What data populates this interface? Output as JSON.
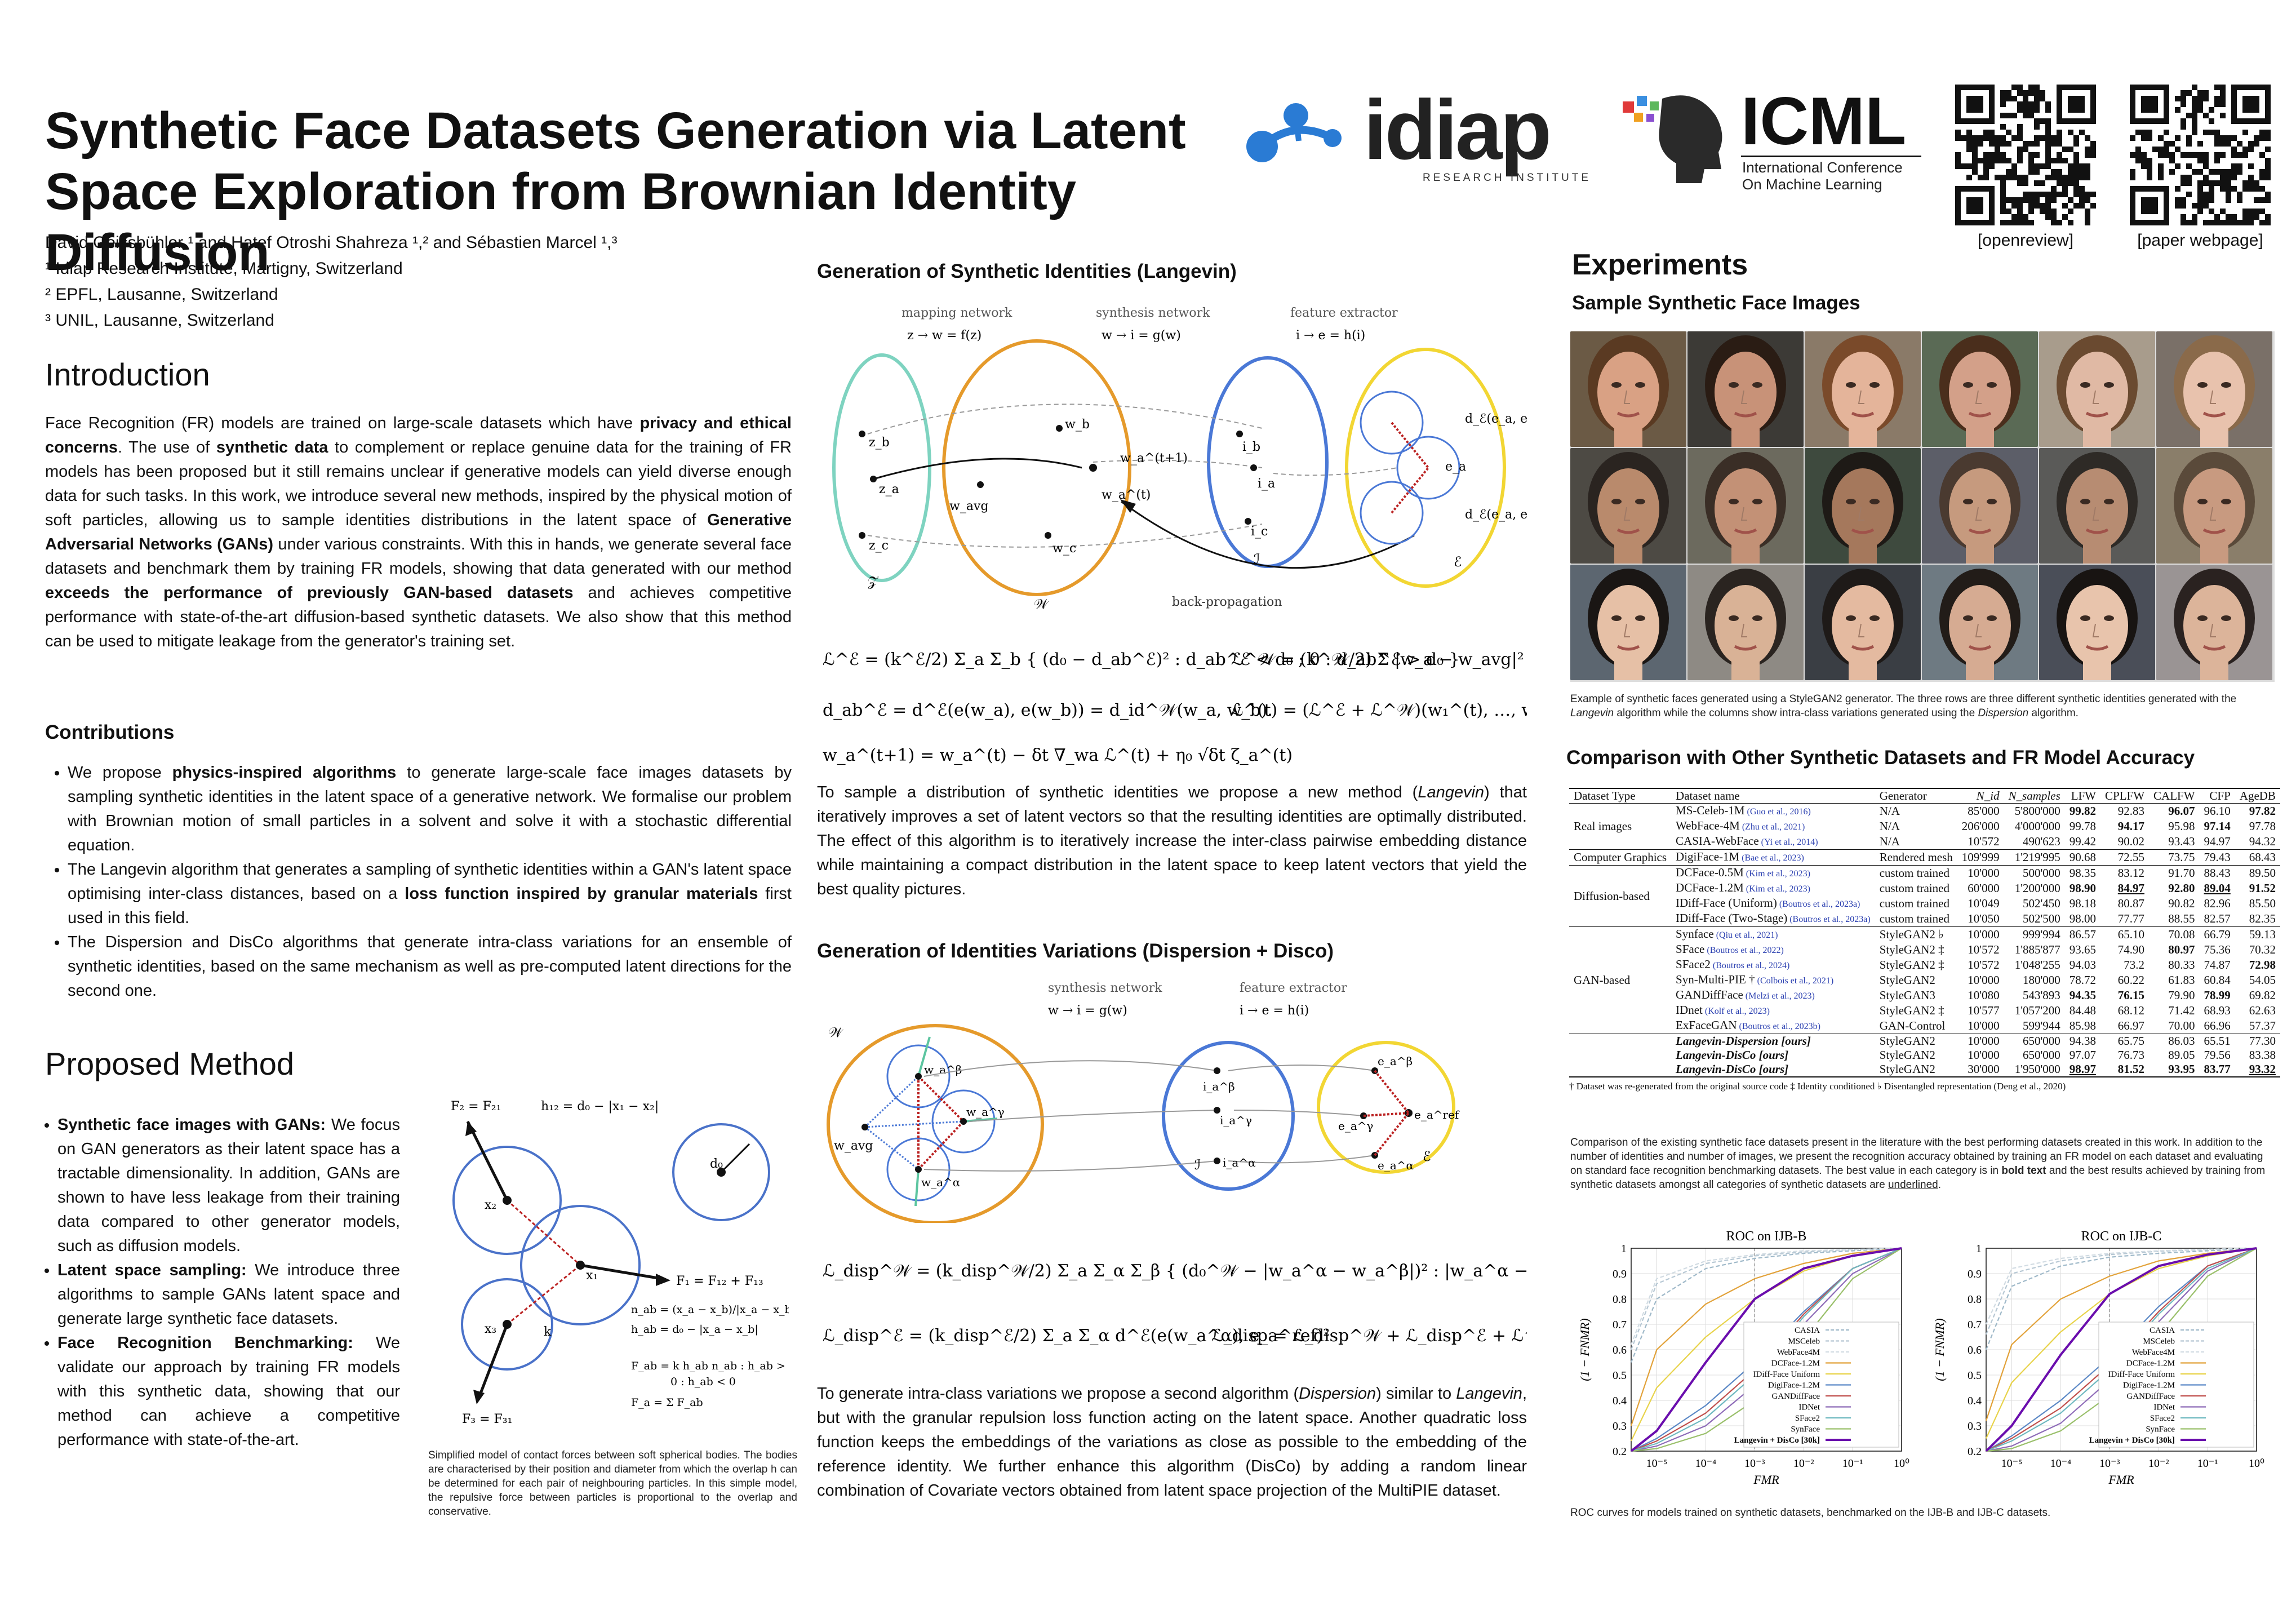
{
  "title_line1": "Synthetic Face Datasets Generation via Latent",
  "title_line2": "Space Exploration from Brownian Identity Diffusion",
  "authors": "David Geissbühler ¹ and Hatef Otroshi Shahreza ¹,² and Sébastien Marcel ¹,³",
  "affiliations": [
    "¹ Idiap Research Institute, Martigny, Switzerland",
    "² EPFL, Lausanne, Switzerland",
    "³ UNIL, Lausanne, Switzerland"
  ],
  "logos": {
    "idiap_text": "idiap",
    "idiap_sub": "RESEARCH INSTITUTE",
    "icml_text": "ICML",
    "icml_sub1": "International Conference",
    "icml_sub2": "On Machine Learning",
    "qr1_label": "[openreview]",
    "qr2_label": "[paper webpage]"
  },
  "intro": {
    "heading": "Introduction",
    "text_html": "Face Recognition (FR) models are trained on large-scale datasets which have <b>privacy and ethical concerns</b>. The use of <b>synthetic data</b> to complement or replace genuine data for the training of FR models has been proposed but it still remains unclear if generative models can yield diverse enough data for such tasks. In this work, we introduce several new methods, inspired by the physical motion of soft particles, allowing us to sample identities distributions in the latent space of <b>Generative Adversarial Networks (GANs)</b> under various constraints. With this in hands, we generate several face datasets and benchmark them by training FR models, showing that data generated with our method <b>exceeds the performance of previously GAN-based datasets</b> and achieves competitive performance with state-of-the-art diffusion-based synthetic datasets. We also show that this method can be used to mitigate leakage from the generator's training set."
  },
  "contributions": {
    "heading": "Contributions",
    "items_html": [
      "We propose <b>physics-inspired algorithms</b> to generate large-scale face images datasets by sampling synthetic identities in the latent space of a generative network. We formalise our problem with Brownian motion of small particles in a solvent and solve it with a stochastic differential equation.",
      "The Langevin algorithm that generates a sampling of synthetic identities within a GAN's latent space optimising inter-class distances, based on a <b>loss function inspired by granular materials</b> first used in this field.",
      "The Dispersion and DisCo algorithms that generate intra-class variations for an ensemble of synthetic identities, based on the same mechanism as well as pre-computed latent directions for the second one."
    ]
  },
  "method": {
    "heading": "Proposed Method",
    "items_html": [
      "<b>Synthetic face images with GANs:</b> We focus on GAN generators as their latent space has a tractable dimensionality. In addition, GANs are shown to have less leakage from their training data compared to other generator models, such as diffusion models.",
      "<b>Latent space sampling:</b> We introduce three algorithms to sample GANs latent space and generate large synthetic face datasets.",
      "<b>Face Recognition Benchmarking:</b> We validate our approach by training FR models with this synthetic data, showing that our method can achieve a competitive performance with state-of-the-art."
    ],
    "figure_caption": "Simplified model of contact forces between soft spherical bodies. The bodies are characterised by their position and diameter from which the overlap h can be determined for each pair of neighbouring particles. In this simple model, the repulsive force between particles is proportional to the overlap and conservative."
  },
  "langevin": {
    "heading": "Generation of Synthetic Identities (Langevin)",
    "labels": {
      "mapping": "mapping network",
      "mapping_eq": "z → w = f(z)",
      "synthesis": "synthesis network",
      "synthesis_eq": "w → i = g(w)",
      "feature": "feature extractor",
      "feature_eq": "i → e = h(i)",
      "backprop": "back-propagation"
    },
    "text_html": "To sample a distribution of synthetic identities we propose a new method (<i>Langevin</i>) that iteratively improves a set of latent vectors so that the resulting identities are optimally distributed. The effect of this algorithm is to iteratively increase the inter-class pairwise embedding distance while maintaining a compact distribution in the latent space to keep latent vectors that yield the best quality pictures."
  },
  "dispersion": {
    "heading": "Generation of Identities Variations (Dispersion + Disco)",
    "text_html": "To generate intra-class variations we propose a second algorithm (<i>Dispersion</i>) similar to <i>Langevin</i>, but with the granular repulsion loss function acting on the latent space. Another quadratic loss function keeps the embeddings of the variations as close as possible to the embedding of the reference identity. We further enhance this algorithm (DisCo) by adding a random linear combination of Covariate vectors obtained from latent space projection of the MultiPIE dataset."
  },
  "experiments": {
    "heading": "Experiments",
    "samples_heading": "Sample Synthetic Face Images",
    "samples_caption_html": "Example of synthetic faces generated using a StyleGAN2 generator. The three rows are three different synthetic identities generated with the <i>Langevin</i> algorithm while the columns show intra-class variations generated using the <i>Dispersion</i> algorithm.",
    "table_heading": "Comparison with Other Synthetic Datasets and FR Model Accuracy",
    "table_caption_html": "Comparison of the existing synthetic face datasets present in the literature with the best performing datasets created in this work. In addition to the number of identities and number of images, we present the recognition accuracy obtained by training an FR model on each dataset and evaluating on standard face recognition benchmarking datasets. The best value in each category is in <b>bold text</b> and the best results achieved by training from synthetic datasets amongst all categories of synthetic datasets are <u>underlined</u>.",
    "roc_caption": "ROC curves for models trained on synthetic datasets, benchmarked on the IJB-B and IJB-C datasets."
  },
  "table": {
    "headers": [
      "Dataset Type",
      "Dataset name",
      "Generator",
      "N_id",
      "N_samples",
      "LFW",
      "CPLFW",
      "CALFW",
      "CFP",
      "AgeDB"
    ],
    "footnote": "† Dataset was re-generated from the original source code    ‡ Identity conditioned    ♭ Disentangled representation (Deng et al., 2020)",
    "groups": [
      {
        "type": "Real images",
        "rows": [
          [
            "MS-Celeb-1M",
            "(Guo et al., 2016)",
            "N/A",
            "85'000",
            "5'800'000",
            "99.82",
            "92.83",
            "96.07",
            "96.10",
            "97.82",
            "b:5,7,9"
          ],
          [
            "WebFace-4M",
            "(Zhu et al., 2021)",
            "N/A",
            "206'000",
            "4'000'000",
            "99.78",
            "94.17",
            "95.98",
            "97.14",
            "97.78",
            "b:6,8"
          ],
          [
            "CASIA-WebFace",
            "(Yi et al., 2014)",
            "N/A",
            "10'572",
            "490'623",
            "99.42",
            "90.02",
            "93.43",
            "94.97",
            "94.32",
            ""
          ]
        ]
      },
      {
        "type": "Computer Graphics",
        "rows": [
          [
            "DigiFace-1M",
            "(Bae et al., 2023)",
            "Rendered mesh",
            "109'999",
            "1'219'995",
            "90.68",
            "72.55",
            "73.75",
            "79.43",
            "68.43",
            ""
          ]
        ]
      },
      {
        "type": "Diffusion-based",
        "rows": [
          [
            "DCFace-0.5M",
            "(Kim et al., 2023)",
            "custom trained",
            "10'000",
            "500'000",
            "98.35",
            "83.12",
            "91.70",
            "88.43",
            "89.50",
            ""
          ],
          [
            "DCFace-1.2M",
            "(Kim et al., 2023)",
            "custom trained",
            "60'000",
            "1'200'000",
            "98.90",
            "84.97",
            "92.80",
            "89.04",
            "91.52",
            "b:5,6,7,8,9;u:6,8"
          ],
          [
            "IDiff-Face (Uniform)",
            "(Boutros et al., 2023a)",
            "custom trained",
            "10'049",
            "502'450",
            "98.18",
            "80.87",
            "90.82",
            "82.96",
            "85.50",
            ""
          ],
          [
            "IDiff-Face (Two-Stage)",
            "(Boutros et al., 2023a)",
            "custom trained",
            "10'050",
            "502'500",
            "98.00",
            "77.77",
            "88.55",
            "82.57",
            "82.35",
            ""
          ]
        ]
      },
      {
        "type": "GAN-based",
        "rows": [
          [
            "Synface",
            "(Qiu et al., 2021)",
            "StyleGAN2 ♭",
            "10'000",
            "999'994",
            "86.57",
            "65.10",
            "70.08",
            "66.79",
            "59.13",
            ""
          ],
          [
            "SFace",
            "(Boutros et al., 2022)",
            "StyleGAN2 ‡",
            "10'572",
            "1'885'877",
            "93.65",
            "74.90",
            "80.97",
            "75.36",
            "70.32",
            "b:7"
          ],
          [
            "SFace2",
            "(Boutros et al., 2024)",
            "StyleGAN2 ‡",
            "10'572",
            "1'048'255",
            "94.03",
            "73.2",
            "80.33",
            "74.87",
            "72.98",
            "b:9"
          ],
          [
            "Syn-Multi-PIE †",
            "(Colbois et al., 2021)",
            "StyleGAN2",
            "10'000",
            "180'000",
            "78.72",
            "60.22",
            "61.83",
            "60.84",
            "54.05",
            ""
          ],
          [
            "GANDiffFace",
            "(Melzi et al., 2023)",
            "StyleGAN3",
            "10'080",
            "543'893",
            "94.35",
            "76.15",
            "79.90",
            "78.99",
            "69.82",
            "b:5,6,8"
          ],
          [
            "IDnet",
            "(Kolf et al., 2023)",
            "StyleGAN2 ‡",
            "10'577",
            "1'057'200",
            "84.48",
            "68.12",
            "71.42",
            "68.93",
            "62.63",
            ""
          ],
          [
            "ExFaceGAN",
            "(Boutros et al., 2023b)",
            "GAN-Control",
            "10'000",
            "599'944",
            "85.98",
            "66.97",
            "70.00",
            "66.96",
            "57.37",
            ""
          ]
        ]
      },
      {
        "type": "",
        "rows": [
          [
            "Langevin-Dispersion [ours]",
            "",
            "StyleGAN2",
            "10'000",
            "650'000",
            "94.38",
            "65.75",
            "86.03",
            "65.51",
            "77.30",
            "ours"
          ],
          [
            "Langevin-DisCo [ours]",
            "",
            "StyleGAN2",
            "10'000",
            "650'000",
            "97.07",
            "76.73",
            "89.05",
            "79.56",
            "83.38",
            "ours"
          ],
          [
            "Langevin-DisCo [ours]",
            "",
            "StyleGAN2",
            "30'000",
            "1'950'000",
            "98.97",
            "81.52",
            "93.95",
            "83.77",
            "93.32",
            "ours;b:5,6,7,8,9;u:5,9"
          ]
        ]
      }
    ]
  },
  "roc": {
    "charts": [
      {
        "title": "ROC on IJB-B"
      },
      {
        "title": "ROC on IJB-C"
      }
    ],
    "ylabel": "(1 − FNMR)",
    "xlabel": "FMR",
    "yticks": [
      "0.2",
      "0.3",
      "0.4",
      "0.5",
      "0.6",
      "0.7",
      "0.8",
      "0.9",
      "1"
    ],
    "xticks": [
      "10⁻⁵",
      "10⁻⁴",
      "10⁻³",
      "10⁻²",
      "10⁻¹",
      "10⁰"
    ],
    "legend": [
      "CASIA",
      "MSCeleb",
      "WebFace4M",
      "DCFace-1.2M",
      "IDiff-Face Uniform",
      "DigiFace-1.2M",
      "GANDiffFace",
      "IDNet",
      "SFace2",
      "SynFace",
      "Langevin + DisCo [30k]"
    ]
  },
  "chart_data": [
    {
      "type": "line",
      "title": "ROC on IJB-B",
      "xlabel": "FMR",
      "ylabel": "(1 − FNMR)",
      "x_scale": "log",
      "xlim": [
        3e-06,
        1
      ],
      "ylim": [
        0.2,
        1
      ],
      "grid": true,
      "legend_position": "bottom-right",
      "x": [
        3e-06,
        1e-05,
        0.0001,
        0.001,
        0.01,
        0.1,
        1
      ],
      "series": [
        {
          "name": "CASIA",
          "color": "#9fb9c9",
          "values": [
            0.55,
            0.8,
            0.92,
            0.96,
            0.98,
            0.99,
            1.0
          ]
        },
        {
          "name": "MSCeleb",
          "color": "#b7c8d4",
          "values": [
            0.6,
            0.86,
            0.94,
            0.97,
            0.985,
            0.995,
            1.0
          ]
        },
        {
          "name": "WebFace4M",
          "color": "#d2dce3",
          "values": [
            0.62,
            0.88,
            0.95,
            0.975,
            0.99,
            0.995,
            1.0
          ]
        },
        {
          "name": "DCFace-1.2M",
          "color": "#e2a23a",
          "values": [
            0.3,
            0.6,
            0.78,
            0.88,
            0.94,
            0.98,
            1.0
          ]
        },
        {
          "name": "IDiff-Face Uniform",
          "color": "#e8d34a",
          "values": [
            0.24,
            0.45,
            0.65,
            0.8,
            0.91,
            0.97,
            1.0
          ]
        },
        {
          "name": "DigiFace-1.2M",
          "color": "#5c89c6",
          "values": [
            0.2,
            0.25,
            0.38,
            0.55,
            0.75,
            0.92,
            1.0
          ]
        },
        {
          "name": "GANDiffFace",
          "color": "#c0504d",
          "values": [
            0.2,
            0.24,
            0.35,
            0.52,
            0.74,
            0.92,
            1.0
          ]
        },
        {
          "name": "IDNet",
          "color": "#8e6bb8",
          "values": [
            0.2,
            0.22,
            0.3,
            0.46,
            0.7,
            0.9,
            1.0
          ]
        },
        {
          "name": "SFace2",
          "color": "#6fb9c0",
          "values": [
            0.2,
            0.23,
            0.33,
            0.5,
            0.73,
            0.92,
            1.0
          ]
        },
        {
          "name": "SynFace",
          "color": "#9ac06b",
          "values": [
            0.2,
            0.21,
            0.27,
            0.4,
            0.64,
            0.88,
            1.0
          ]
        },
        {
          "name": "Langevin + DisCo [30k]",
          "color": "#6a0dad",
          "values": [
            0.2,
            0.28,
            0.55,
            0.8,
            0.92,
            0.97,
            1.0
          ]
        }
      ]
    },
    {
      "type": "line",
      "title": "ROC on IJB-C",
      "xlabel": "FMR",
      "ylabel": "(1 − FNMR)",
      "x_scale": "log",
      "xlim": [
        3e-06,
        1
      ],
      "ylim": [
        0.2,
        1
      ],
      "grid": true,
      "legend_position": "bottom-right",
      "x": [
        3e-06,
        1e-05,
        0.0001,
        0.001,
        0.01,
        0.1,
        1
      ],
      "series": [
        {
          "name": "CASIA",
          "color": "#9fb9c9",
          "values": [
            0.6,
            0.85,
            0.93,
            0.965,
            0.98,
            0.99,
            1.0
          ]
        },
        {
          "name": "MSCeleb",
          "color": "#b7c8d4",
          "values": [
            0.66,
            0.9,
            0.95,
            0.975,
            0.988,
            0.995,
            1.0
          ]
        },
        {
          "name": "WebFace4M",
          "color": "#d2dce3",
          "values": [
            0.7,
            0.92,
            0.96,
            0.98,
            0.99,
            0.996,
            1.0
          ]
        },
        {
          "name": "DCFace-1.2M",
          "color": "#e2a23a",
          "values": [
            0.32,
            0.62,
            0.8,
            0.89,
            0.95,
            0.98,
            1.0
          ]
        },
        {
          "name": "IDiff-Face Uniform",
          "color": "#e8d34a",
          "values": [
            0.25,
            0.47,
            0.67,
            0.82,
            0.92,
            0.97,
            1.0
          ]
        },
        {
          "name": "DigiFace-1.2M",
          "color": "#5c89c6",
          "values": [
            0.2,
            0.26,
            0.4,
            0.57,
            0.77,
            0.93,
            1.0
          ]
        },
        {
          "name": "GANDiffFace",
          "color": "#c0504d",
          "values": [
            0.2,
            0.25,
            0.37,
            0.54,
            0.75,
            0.93,
            1.0
          ]
        },
        {
          "name": "IDNet",
          "color": "#8e6bb8",
          "values": [
            0.2,
            0.22,
            0.31,
            0.48,
            0.71,
            0.91,
            1.0
          ]
        },
        {
          "name": "SFace2",
          "color": "#6fb9c0",
          "values": [
            0.2,
            0.24,
            0.35,
            0.52,
            0.74,
            0.92,
            1.0
          ]
        },
        {
          "name": "SynFace",
          "color": "#9ac06b",
          "values": [
            0.2,
            0.21,
            0.28,
            0.42,
            0.66,
            0.89,
            1.0
          ]
        },
        {
          "name": "Langevin + DisCo [30k]",
          "color": "#6a0dad",
          "values": [
            0.2,
            0.3,
            0.58,
            0.82,
            0.93,
            0.975,
            1.0
          ]
        }
      ]
    }
  ]
}
